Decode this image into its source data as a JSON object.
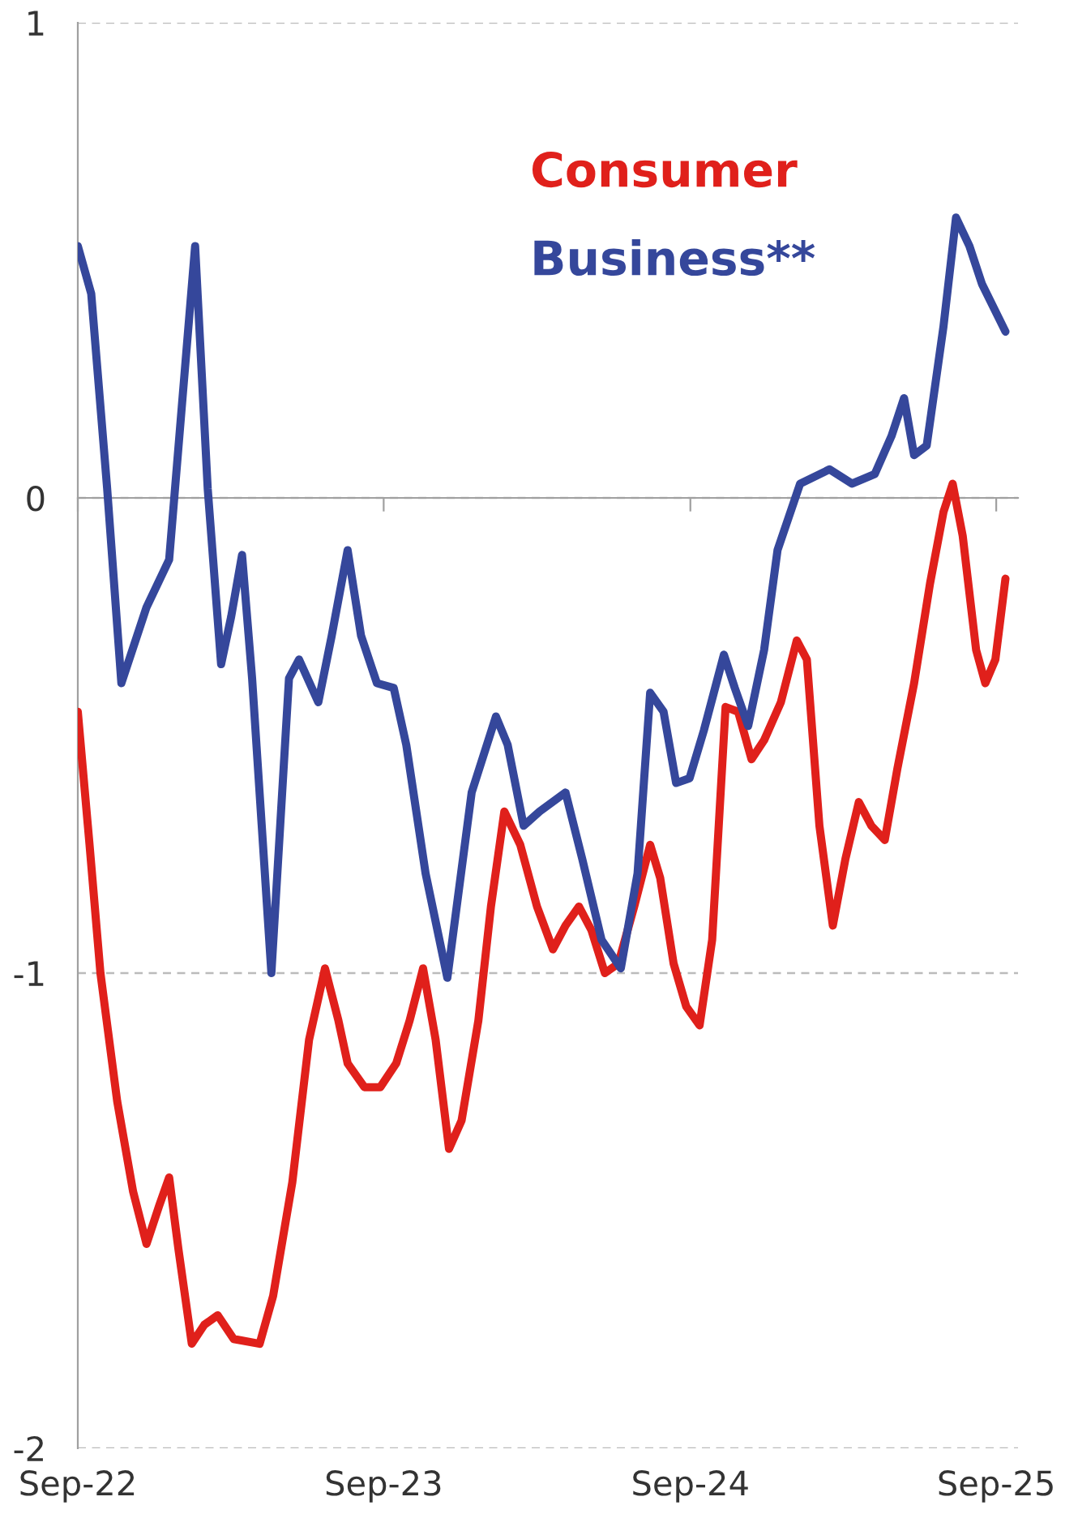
{
  "chart_data": {
    "type": "line",
    "ylim": [
      -2,
      1
    ],
    "yticks": [
      -2,
      -1,
      0,
      1
    ],
    "xlim": [
      "2022-09-01",
      "2025-09-27"
    ],
    "xticks": [
      {
        "value": "2022-09-01",
        "label": "Sep-22"
      },
      {
        "value": "2023-09-01",
        "label": "Sep-23"
      },
      {
        "value": "2024-09-01",
        "label": "Sep-24"
      },
      {
        "value": "2025-09-01",
        "label": "Sep-25"
      }
    ],
    "grid": "y",
    "legend": "top right",
    "line_style": "solid",
    "marker": "none",
    "series": [
      {
        "name": "Consumer",
        "color": "#e0201b",
        "x": [
          "2022-09-01",
          "2022-09-15",
          "2022-09-28",
          "2022-10-18",
          "2022-11-06",
          "2022-11-22",
          "2022-12-07",
          "2022-12-19",
          "2022-12-30",
          "2023-01-15",
          "2023-01-30",
          "2023-02-15",
          "2023-03-06",
          "2023-04-06",
          "2023-04-22",
          "2023-05-15",
          "2023-06-04",
          "2023-06-23",
          "2023-07-09",
          "2023-07-20",
          "2023-08-09",
          "2023-08-28",
          "2023-09-16",
          "2023-10-02",
          "2023-10-18",
          "2023-11-02",
          "2023-11-18",
          "2023-12-03",
          "2023-12-23",
          "2024-01-07",
          "2024-01-23",
          "2024-02-11",
          "2024-03-02",
          "2024-03-21",
          "2024-04-05",
          "2024-04-21",
          "2024-05-06",
          "2024-05-22",
          "2024-06-07",
          "2024-06-26",
          "2024-07-15",
          "2024-07-27",
          "2024-08-12",
          "2024-08-27",
          "2024-09-12",
          "2024-09-27",
          "2024-10-13",
          "2024-10-28",
          "2024-11-13",
          "2024-11-28",
          "2024-12-18",
          "2025-01-06",
          "2025-01-18",
          "2025-02-02",
          "2025-02-18",
          "2025-03-05",
          "2025-03-21",
          "2025-04-05",
          "2025-04-21",
          "2025-05-06",
          "2025-05-26",
          "2025-06-14",
          "2025-06-30",
          "2025-07-11",
          "2025-07-23",
          "2025-08-08",
          "2025-08-19",
          "2025-08-31",
          "2025-09-12"
        ],
        "values": [
          -0.45,
          -0.73,
          -1.0,
          -1.27,
          -1.46,
          -1.57,
          -1.49,
          -1.43,
          -1.58,
          -1.78,
          -1.74,
          -1.72,
          -1.77,
          -1.78,
          -1.68,
          -1.44,
          -1.14,
          -0.99,
          -1.1,
          -1.19,
          -1.24,
          -1.24,
          -1.19,
          -1.1,
          -0.99,
          -1.14,
          -1.37,
          -1.31,
          -1.1,
          -0.86,
          -0.66,
          -0.73,
          -0.86,
          -0.95,
          -0.9,
          -0.86,
          -0.91,
          -1.0,
          -0.98,
          -0.86,
          -0.73,
          -0.8,
          -0.98,
          -1.07,
          -1.11,
          -0.93,
          -0.44,
          -0.45,
          -0.55,
          -0.51,
          -0.43,
          -0.3,
          -0.34,
          -0.69,
          -0.9,
          -0.76,
          -0.64,
          -0.69,
          -0.72,
          -0.57,
          -0.39,
          -0.18,
          -0.03,
          0.03,
          -0.08,
          -0.32,
          -0.39,
          -0.34,
          -0.17
        ]
      },
      {
        "name": "Business**",
        "color": "#35479b",
        "x": [
          "2022-09-01",
          "2022-09-17",
          "2022-10-06",
          "2022-10-23",
          "2022-11-22",
          "2022-12-19",
          "2023-01-03",
          "2023-01-19",
          "2023-02-03",
          "2023-02-19",
          "2023-03-03",
          "2023-03-16",
          "2023-03-28",
          "2023-04-20",
          "2023-05-11",
          "2023-05-23",
          "2023-06-15",
          "2023-07-01",
          "2023-07-20",
          "2023-08-05",
          "2023-08-24",
          "2023-09-13",
          "2023-09-28",
          "2023-10-21",
          "2023-11-16",
          "2023-12-15",
          "2024-01-13",
          "2024-01-27",
          "2024-02-15",
          "2024-03-05",
          "2024-04-05",
          "2024-04-25",
          "2024-05-18",
          "2024-06-10",
          "2024-06-30",
          "2024-07-15",
          "2024-07-31",
          "2024-08-15",
          "2024-08-31",
          "2024-09-17",
          "2024-10-11",
          "2024-10-24",
          "2024-11-09",
          "2024-11-28",
          "2024-12-14",
          "2025-01-10",
          "2025-02-14",
          "2025-03-13",
          "2025-04-09",
          "2025-04-29",
          "2025-05-14",
          "2025-05-26",
          "2025-06-10",
          "2025-06-30",
          "2025-07-15",
          "2025-07-31",
          "2025-08-15",
          "2025-09-12"
        ],
        "values": [
          0.53,
          0.43,
          0.02,
          -0.39,
          -0.23,
          -0.13,
          0.19,
          0.53,
          0.02,
          -0.35,
          -0.25,
          -0.12,
          -0.38,
          -1.0,
          -0.38,
          -0.34,
          -0.43,
          -0.29,
          -0.11,
          -0.29,
          -0.39,
          -0.4,
          -0.52,
          -0.79,
          -1.01,
          -0.62,
          -0.46,
          -0.52,
          -0.69,
          -0.66,
          -0.62,
          -0.76,
          -0.93,
          -0.99,
          -0.79,
          -0.41,
          -0.45,
          -0.6,
          -0.59,
          -0.49,
          -0.33,
          -0.4,
          -0.48,
          -0.32,
          -0.11,
          0.03,
          0.06,
          0.03,
          0.05,
          0.13,
          0.21,
          0.09,
          0.11,
          0.36,
          0.59,
          0.53,
          0.45,
          0.35
        ]
      }
    ]
  }
}
